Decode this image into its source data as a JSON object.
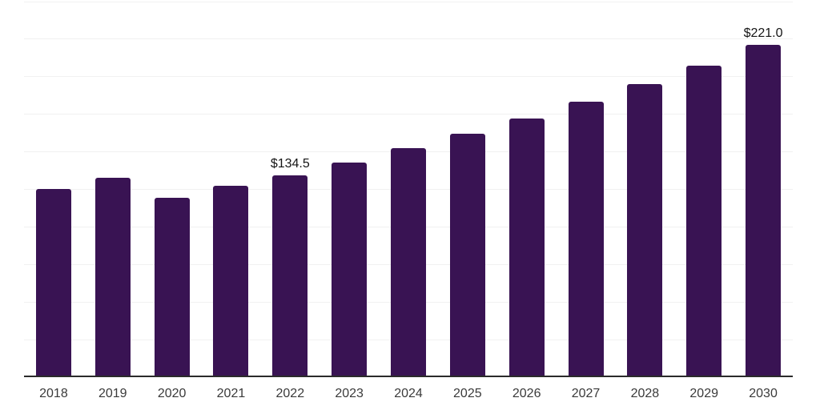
{
  "chart_data": {
    "type": "bar",
    "title": "",
    "xlabel": "",
    "ylabel": "",
    "categories": [
      "2018",
      "2019",
      "2020",
      "2021",
      "2022",
      "2023",
      "2024",
      "2025",
      "2026",
      "2027",
      "2028",
      "2029",
      "2030"
    ],
    "values": [
      125.4,
      132.6,
      119.3,
      127.3,
      134.5,
      143.1,
      152.3,
      162.0,
      172.4,
      183.4,
      195.1,
      207.6,
      221.0
    ],
    "point_labels": {
      "2022": "$134.5",
      "2030": "$221.0"
    },
    "ylim": [
      0,
      250
    ],
    "gridline_step": 25,
    "grid": true,
    "legend": false,
    "colors": {
      "bar": "#391353",
      "axis_line": "#2b2b2b",
      "gridline": "#f1f1f1",
      "tick_label": "#3a3a3a",
      "value_label": "#141414",
      "background": "#ffffff"
    }
  }
}
